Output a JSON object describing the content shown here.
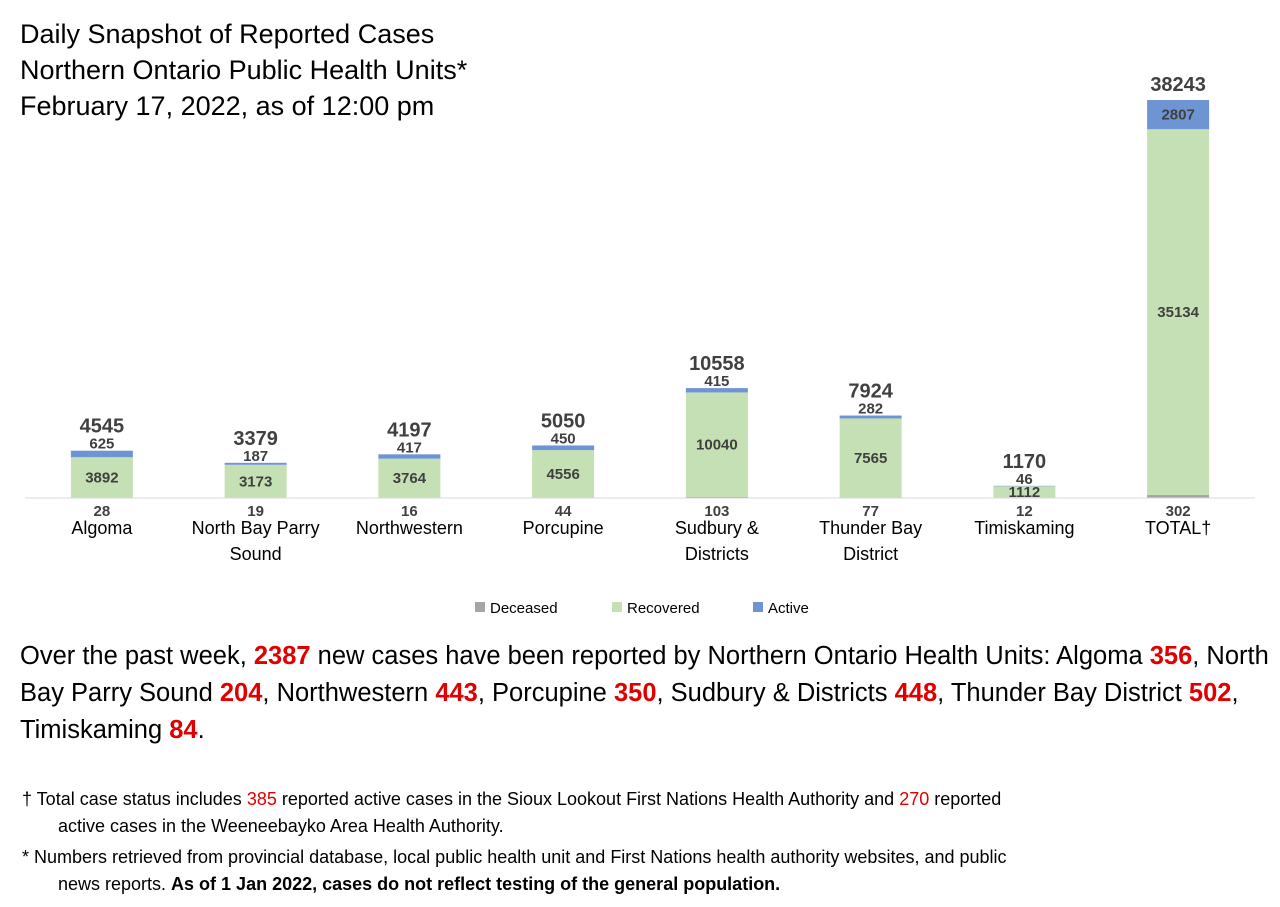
{
  "title_lines": [
    "Daily Snapshot of Reported Cases",
    "Northern Ontario Public Health Units*",
    "February 17, 2022, as of 12:00 pm"
  ],
  "colors": {
    "deceased": "#a5a5a5",
    "recovered": "#c5e0b4",
    "active": "#6f94d4",
    "highlight": "#e00000"
  },
  "chart_data": {
    "type": "bar",
    "stacked": true,
    "categories": [
      [
        "Algoma"
      ],
      [
        "North Bay Parry",
        "Sound"
      ],
      [
        "Northwestern"
      ],
      [
        "Porcupine"
      ],
      [
        "Sudbury &",
        "Districts"
      ],
      [
        "Thunder Bay",
        "District"
      ],
      [
        "Timiskaming"
      ],
      [
        "TOTAL†"
      ]
    ],
    "series": [
      {
        "name": "Deceased",
        "values": [
          28,
          19,
          16,
          44,
          103,
          77,
          12,
          302
        ]
      },
      {
        "name": "Recovered",
        "values": [
          3892,
          3173,
          3764,
          4556,
          10040,
          7565,
          1112,
          35134
        ]
      },
      {
        "name": "Active",
        "values": [
          625,
          187,
          417,
          450,
          415,
          282,
          46,
          2807
        ]
      }
    ],
    "totals": [
      4545,
      3379,
      4197,
      5050,
      10558,
      7924,
      1170,
      38243
    ],
    "ylim": [
      0,
      38243
    ],
    "grid": false,
    "legend_position": "bottom"
  },
  "summary": {
    "p1": "Over the past week, ",
    "total_new": "2387",
    "p2": " new cases have been reported by Northern Ontario Health Units: Algoma ",
    "algoma": "356",
    "p3": ", North Bay Parry Sound ",
    "north_bay": "204",
    "p4": ", Northwestern ",
    "northwestern": "443",
    "p5": ", Porcupine ",
    "porcupine": "350",
    "p6": ", Sudbury & Districts ",
    "sudbury": "448",
    "p7": ", Thunder Bay District ",
    "thunder_bay": "502",
    "p8": ", Timiskaming ",
    "timiskaming": "84",
    "p9": "."
  },
  "footnotes": {
    "f1_a": "† Total case status includes ",
    "f1_n1": "385",
    "f1_b": " reported active cases in the Sioux Lookout First Nations Health Authority and ",
    "f1_n2": "270",
    "f1_c": " reported",
    "f1_d": "active cases in the Weeneebayko Area Health Authority.",
    "f2_a": "* Numbers retrieved from provincial database, local public health unit and First Nations health authority websites, and public",
    "f2_b": "news reports. ",
    "f2_bold": "As of 1 Jan 2022, cases do not reflect testing of the general population."
  }
}
